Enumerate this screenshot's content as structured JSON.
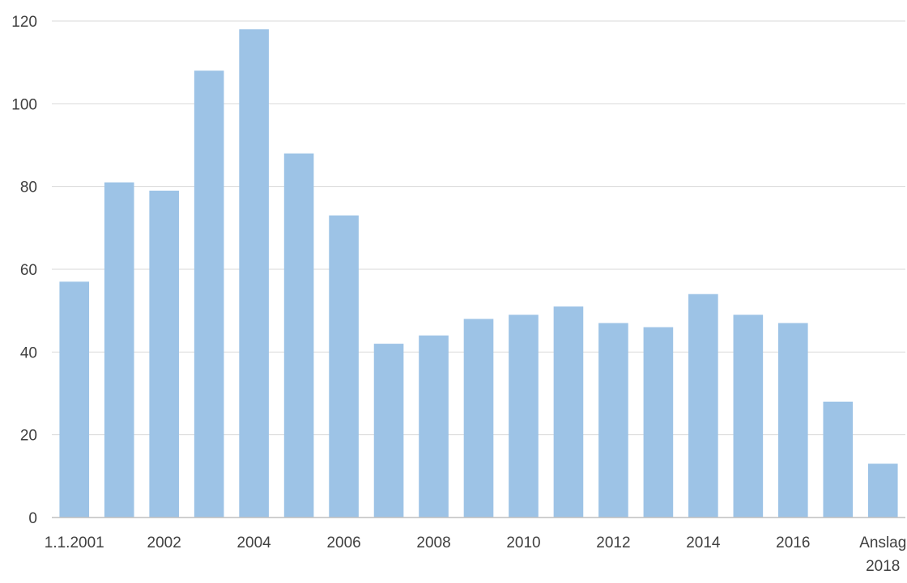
{
  "chart_data": {
    "type": "bar",
    "categories": [
      "1.1.2001",
      "",
      "2002",
      "",
      "2004",
      "",
      "2006",
      "",
      "2008",
      "",
      "2010",
      "",
      "2012",
      "",
      "2014",
      "",
      "2016",
      "",
      "Anslag 2018"
    ],
    "series": [
      {
        "values": [
          57,
          81,
          79,
          108,
          118,
          88,
          73,
          42,
          44,
          48,
          49,
          51,
          47,
          46,
          54,
          49,
          47,
          28,
          13
        ]
      }
    ],
    "ylim": [
      0,
      120
    ],
    "yticks": [
      0,
      20,
      40,
      60,
      80,
      100,
      120
    ],
    "grid": true,
    "bar_color": "#9dc3e6",
    "grid_color": "#d9d9d9",
    "axis_color": "#bfbfbf"
  }
}
